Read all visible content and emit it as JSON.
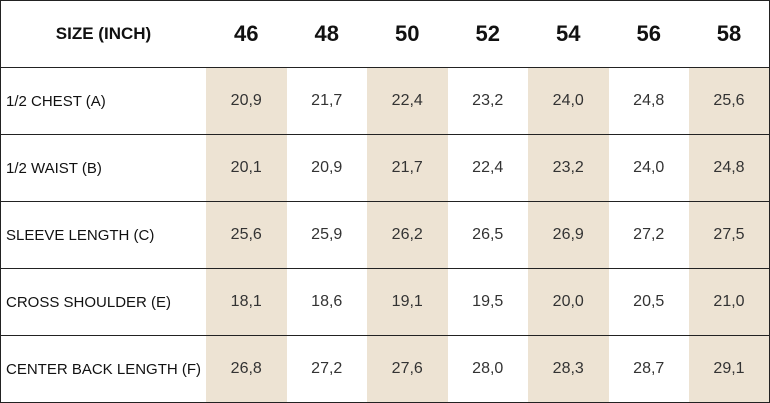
{
  "table": {
    "header": [
      "SIZE (INCH)",
      "46",
      "48",
      "50",
      "52",
      "54",
      "56",
      "58"
    ],
    "rows": [
      [
        "1/2 CHEST (A)",
        "20,9",
        "21,7",
        "22,4",
        "23,2",
        "24,0",
        "24,8",
        "25,6"
      ],
      [
        "1/2 WAIST (B)",
        "20,1",
        "20,9",
        "21,7",
        "22,4",
        "23,2",
        "24,0",
        "24,8"
      ],
      [
        "SLEEVE LENGTH (C)",
        "25,6",
        "25,9",
        "26,2",
        "26,5",
        "26,9",
        "27,2",
        "27,5"
      ],
      [
        "CROSS SHOULDER (E)",
        "18,1",
        "18,6",
        "19,1",
        "19,5",
        "20,0",
        "20,5",
        "21,0"
      ],
      [
        "CENTER BACK LENGTH (F)",
        "26,8",
        "27,2",
        "27,6",
        "28,0",
        "28,3",
        "28,7",
        "29,1"
      ]
    ]
  }
}
